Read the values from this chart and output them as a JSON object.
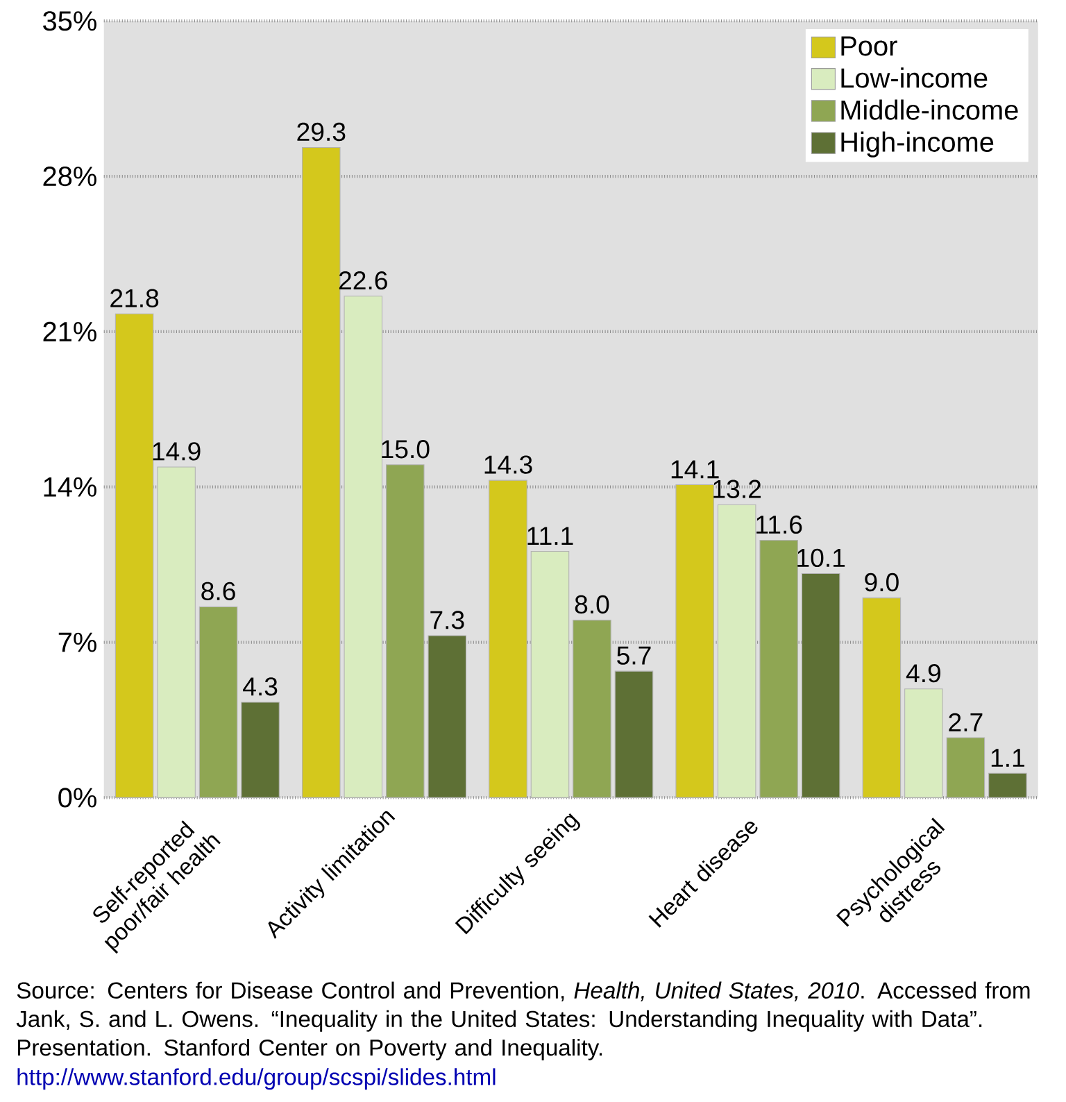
{
  "chart_data": {
    "type": "bar",
    "categories": [
      "Self-reported poor/fair health",
      "Activity limitation",
      "Difficulty seeing",
      "Heart disease",
      "Psychological distress"
    ],
    "series": [
      {
        "name": "Poor",
        "color": "#d4c81c",
        "values": [
          21.8,
          29.3,
          14.3,
          14.1,
          9.0
        ],
        "value_labels": [
          "21.8",
          "29.3",
          "14.3",
          "14.1",
          "9.0"
        ]
      },
      {
        "name": "Low-income",
        "color": "#d9ecbf",
        "values": [
          14.9,
          22.6,
          11.1,
          13.2,
          4.9
        ],
        "value_labels": [
          "14.9",
          "22.6",
          "11.1",
          "13.2",
          "4.9"
        ]
      },
      {
        "name": "Middle-income",
        "color": "#8fa653",
        "values": [
          8.6,
          15.0,
          8.0,
          11.6,
          2.7
        ],
        "value_labels": [
          "8.6",
          "15.0",
          "8.0",
          "11.6",
          "2.7"
        ]
      },
      {
        "name": "High-income",
        "color": "#5e7035",
        "values": [
          4.3,
          7.3,
          5.7,
          10.1,
          1.1
        ],
        "value_labels": [
          "4.3",
          "7.3",
          "5.7",
          "10.1",
          "1.1"
        ]
      }
    ],
    "ylim": [
      0,
      35
    ],
    "yticks": [
      {
        "value": 0,
        "label": "0%"
      },
      {
        "value": 7,
        "label": "7%"
      },
      {
        "value": 14,
        "label": "14%"
      },
      {
        "value": 21,
        "label": "21%"
      },
      {
        "value": 28,
        "label": "28%"
      },
      {
        "value": 35,
        "label": "35%"
      }
    ],
    "grid": "y",
    "legend": "top right",
    "annotations": [
      "Source: Centers for Disease Control and Prevention, *Health, United States, 2010*.  Accessed from Jank, S. and L. Owens. “Inequality in the United States: Understanding Inequality with Data”. Presentation. Stanford Center on Poverty and Inequality.",
      "http://www.stanford.edu/group/scspi/slides.html"
    ]
  }
}
